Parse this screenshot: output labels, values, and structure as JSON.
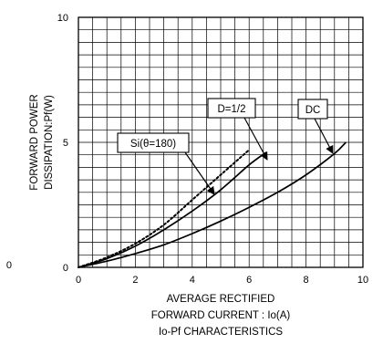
{
  "chart_data": {
    "type": "line",
    "title": "Io-Pf CHARACTERISTICS",
    "xlabel_lines": [
      "AVERAGE RECTIFIED",
      "FORWARD CURRENT : Io(A)"
    ],
    "ylabel_lines": [
      "FORWARD POWER",
      "DISSIPATION:Pf(W)"
    ],
    "xlim": [
      0,
      10
    ],
    "ylim": [
      0,
      10
    ],
    "grid": true,
    "x_ticks": [
      "0",
      "2",
      "4",
      "6",
      "8",
      "10"
    ],
    "y_ticks": [
      "0",
      "5",
      "10"
    ],
    "stray_label": "0",
    "series": [
      {
        "name": "Si(θ=180)",
        "style": "dotted",
        "x": [
          0,
          1,
          2,
          3,
          4,
          5,
          6
        ],
        "y": [
          0,
          0.4,
          0.95,
          1.7,
          2.7,
          3.7,
          4.7
        ]
      },
      {
        "name": "D=1/2",
        "style": "solid",
        "x": [
          0,
          1,
          2,
          3,
          4,
          5,
          6,
          6.6
        ],
        "y": [
          0,
          0.35,
          0.85,
          1.5,
          2.25,
          3.1,
          4.1,
          4.6
        ]
      },
      {
        "name": "DC",
        "style": "solid",
        "x": [
          0,
          1,
          2,
          3,
          4,
          5,
          6,
          7,
          8,
          9,
          9.4
        ],
        "y": [
          0,
          0.25,
          0.55,
          0.9,
          1.35,
          1.85,
          2.4,
          3.0,
          3.7,
          4.55,
          5.0
        ]
      }
    ],
    "annotations": [
      {
        "text": "Si(θ=180)",
        "series": "Si(θ=180)"
      },
      {
        "text": "D=1/2",
        "series": "D=1/2"
      },
      {
        "text": "DC",
        "series": "DC"
      }
    ]
  }
}
